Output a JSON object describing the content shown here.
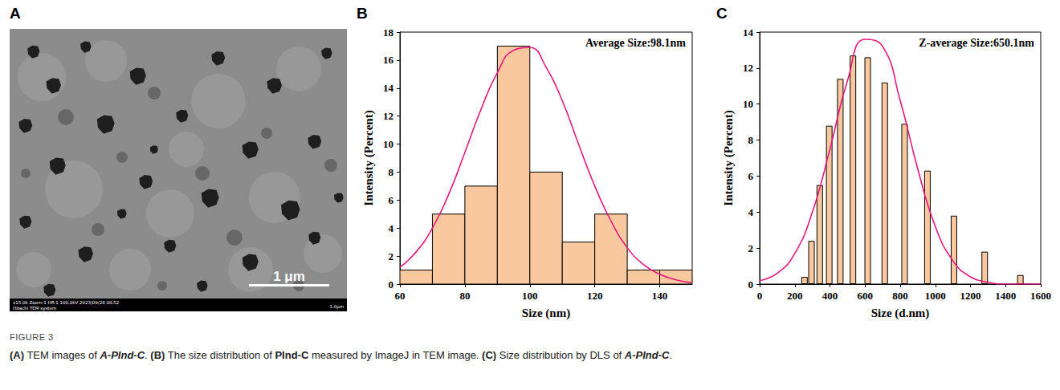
{
  "figure": {
    "panel_letters": [
      "A",
      "B",
      "C"
    ],
    "image": {
      "scale_bar": "1 μm",
      "info_left": "x15.0k Zoom-1 HR-1 100.0kV 2023/09/28 08:52",
      "info_mid": "Hitachi TEM system",
      "info_right": "1.0μm"
    },
    "caption": {
      "label": "FIGURE 3",
      "segments": [
        {
          "text": "(A)",
          "style": "bold"
        },
        {
          "text": " TEM images of ",
          "style": "normal"
        },
        {
          "text": "A-PInd-C",
          "style": "bold-italic"
        },
        {
          "text": ". ",
          "style": "normal"
        },
        {
          "text": "(B)",
          "style": "bold"
        },
        {
          "text": " The size distribution of ",
          "style": "normal"
        },
        {
          "text": "PInd-C",
          "style": "bold"
        },
        {
          "text": " measured by ImageJ in TEM image. ",
          "style": "normal"
        },
        {
          "text": "(C)",
          "style": "bold"
        },
        {
          "text": " Size distribution by DLS of ",
          "style": "normal"
        },
        {
          "text": "A-PInd-C",
          "style": "bold-italic"
        },
        {
          "text": ".",
          "style": "normal"
        }
      ]
    }
  },
  "chart_data": [
    {
      "type": "histogram",
      "x_label": "Size (nm)",
      "y_label": "Intensity (Percent)",
      "annotation": "Average Size:98.1nm",
      "bins": [
        60,
        70,
        80,
        90,
        100,
        110,
        120,
        130,
        140,
        150
      ],
      "values": [
        1,
        5,
        7,
        17,
        8,
        3,
        5,
        1,
        1
      ],
      "color": "#fac89e",
      "grid": false,
      "xlim": [
        60,
        150
      ],
      "xticks": [
        60,
        80,
        100,
        120,
        140
      ],
      "ylim": [
        0,
        18
      ],
      "yticks": [
        0,
        2,
        4,
        6,
        8,
        10,
        12,
        14,
        16,
        18
      ],
      "fit": {
        "type": "line",
        "color": "#e8177d",
        "x": [
          60,
          65,
          70,
          75,
          80,
          85,
          90,
          95,
          100,
          105,
          110,
          115,
          120,
          125,
          130,
          135,
          140,
          145,
          150
        ],
        "values": [
          1.2,
          2.3,
          4.0,
          6.4,
          9.4,
          12.5,
          15.1,
          16.7,
          16.9,
          15.5,
          13.1,
          10.0,
          7.0,
          4.5,
          2.6,
          1.4,
          0.7,
          0.3,
          0.1
        ]
      }
    },
    {
      "type": "bar",
      "x_label": "Size (d.nm)",
      "y_label": "Intensity (Percent)",
      "annotation": "Z-average Size:650.1nm",
      "x": [
        255,
        295,
        342,
        396,
        459,
        531,
        615,
        712,
        825,
        955,
        1106,
        1281,
        1484
      ],
      "values": [
        0.4,
        2.4,
        5.5,
        8.8,
        11.4,
        12.7,
        12.6,
        11.2,
        8.9,
        6.3,
        3.8,
        1.8,
        0.5
      ],
      "color": "#fac89e",
      "grid": false,
      "xlim": [
        0,
        1600
      ],
      "xticks": [
        0,
        200,
        400,
        600,
        800,
        1000,
        1200,
        1400,
        1600
      ],
      "ylim": [
        0,
        14
      ],
      "yticks": [
        0,
        2,
        4,
        6,
        8,
        10,
        12,
        14
      ],
      "fit": {
        "type": "line",
        "color": "#e8177d",
        "x": [
          0,
          100,
          200,
          300,
          400,
          500,
          600,
          700,
          800,
          900,
          1000,
          1100,
          1200,
          1300,
          1400,
          1500,
          1600
        ],
        "values": [
          0.2,
          0.6,
          1.7,
          4.0,
          7.5,
          11.3,
          13.6,
          13.2,
          10.2,
          6.4,
          3.2,
          1.3,
          0.4,
          0.1,
          0,
          0,
          0
        ]
      }
    }
  ]
}
